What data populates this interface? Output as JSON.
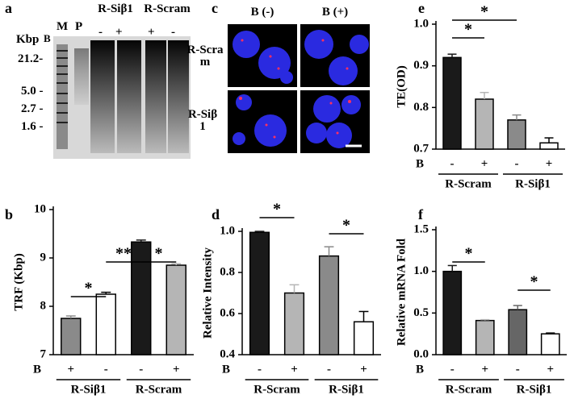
{
  "gel": {
    "panel": "a",
    "unit": "Kbp",
    "row_label": "B",
    "lanes": [
      "M",
      "P"
    ],
    "groups": [
      "R-Siβ1",
      "R-Scram"
    ],
    "signs": [
      "-",
      "+",
      "+",
      "-"
    ],
    "sizes": [
      "21.2-",
      "5.0 -",
      "2.7 -",
      "1.6 -"
    ]
  },
  "micrograph": {
    "panel": "c",
    "columns": [
      "B (-)",
      "B (+)"
    ],
    "rows": [
      "R-Scram",
      "R-Siβ1"
    ]
  },
  "chart_data": [
    {
      "type": "bar",
      "panel": "b",
      "y_label": "TRF (Kbp)",
      "x_label": "B",
      "categories": [
        "+",
        "-",
        "-",
        "+"
      ],
      "groups": [
        "R-Siβ1",
        "R-Scram"
      ],
      "values": [
        7.75,
        8.25,
        9.33,
        8.85
      ],
      "errors": [
        0.05,
        0.04,
        0.04,
        0.03
      ],
      "colors": [
        "#8a8a8a",
        "#ffffff",
        "#1a1a1a",
        "#b5b5b5"
      ],
      "ylim": [
        7,
        10
      ],
      "yticks": [
        7,
        8,
        9,
        10
      ],
      "annotations": [
        "*",
        "**",
        "*"
      ]
    },
    {
      "type": "bar",
      "panel": "d",
      "y_label": "Relative Intensity",
      "x_label": "B",
      "categories": [
        "-",
        "+",
        "-",
        "+"
      ],
      "groups": [
        "R-Scram",
        "R-Siβ1"
      ],
      "values": [
        0.995,
        0.7,
        0.88,
        0.56
      ],
      "errors": [
        0.005,
        0.04,
        0.045,
        0.05
      ],
      "colors": [
        "#1a1a1a",
        "#b5b5b5",
        "#8a8a8a",
        "#ffffff"
      ],
      "ylim": [
        0.4,
        1.0
      ],
      "yticks": [
        0.4,
        0.6,
        0.8,
        {
          "value": 1.0,
          "label": "1.0"
        }
      ],
      "annotations": [
        "*",
        "*"
      ]
    },
    {
      "type": "bar",
      "panel": "e",
      "y_label": "TE(OD)",
      "x_label": "B",
      "categories": [
        "-",
        "+",
        "-",
        "+"
      ],
      "groups": [
        "R-Scram",
        "R-Siβ1"
      ],
      "values": [
        0.92,
        0.82,
        0.77,
        0.715
      ],
      "errors": [
        0.008,
        0.016,
        0.012,
        0.012
      ],
      "colors": [
        "#1a1a1a",
        "#b5b5b5",
        "#8a8a8a",
        "#ffffff"
      ],
      "ylim": [
        0.7,
        1.0
      ],
      "yticks": [
        0.7,
        0.8,
        0.9,
        {
          "value": 1.0,
          "label": "1.0"
        }
      ],
      "annotations": [
        "*",
        "*"
      ]
    },
    {
      "type": "bar",
      "panel": "f",
      "y_label": "Relative mRNA Fold",
      "x_label": "B",
      "categories": [
        "-",
        "+",
        "-",
        "+"
      ],
      "groups": [
        "R-Scram",
        "R-Siβ1"
      ],
      "values": [
        1.0,
        0.41,
        0.54,
        0.25
      ],
      "errors": [
        0.07,
        0.01,
        0.05,
        0.01
      ],
      "colors": [
        "#1a1a1a",
        "#b5b5b5",
        "#666666",
        "#ffffff"
      ],
      "ylim": [
        0,
        1.5
      ],
      "yticks": [
        {
          "value": 0,
          "label": "0.0"
        },
        0.5,
        {
          "value": 1.0,
          "label": "1.0"
        },
        1.5
      ],
      "annotations": [
        "*",
        "*"
      ]
    }
  ]
}
